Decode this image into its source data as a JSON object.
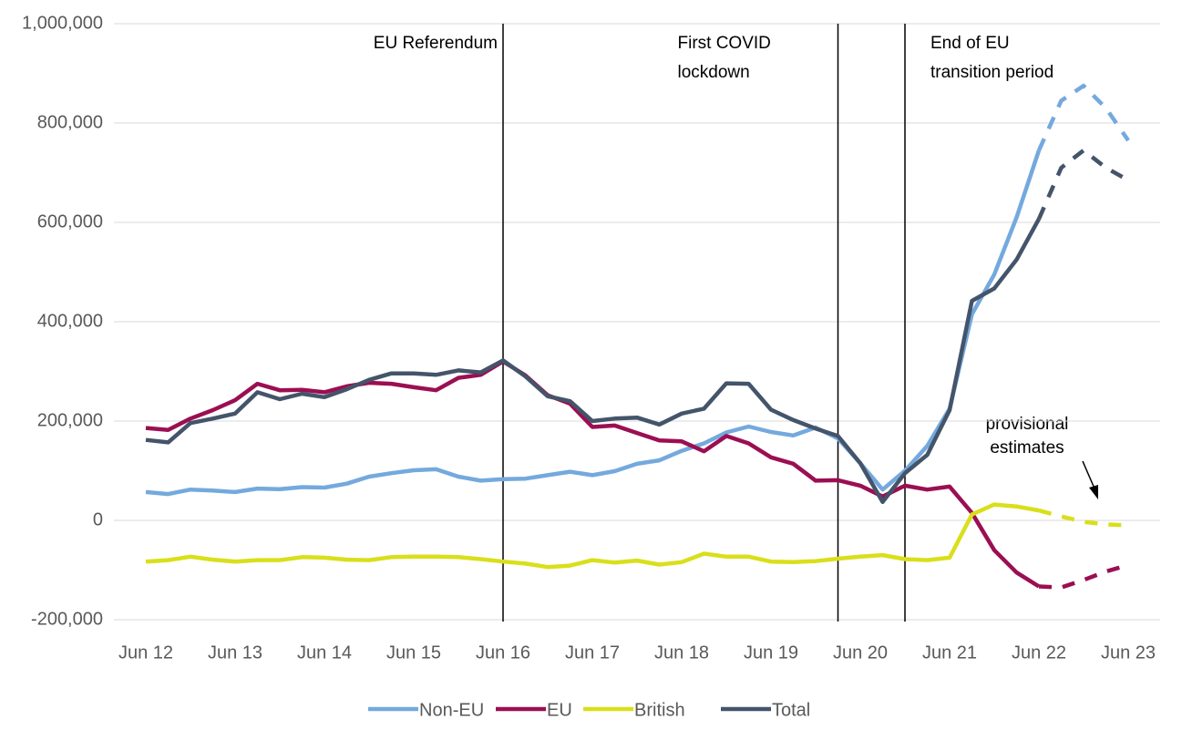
{
  "chart_data": {
    "type": "line",
    "categories": [
      "Jun 12",
      null,
      null,
      null,
      "Jun 13",
      null,
      null,
      null,
      "Jun 14",
      null,
      null,
      null,
      "Jun 15",
      null,
      null,
      null,
      "Jun 16",
      null,
      null,
      null,
      "Jun 17",
      null,
      null,
      null,
      "Jun 18",
      null,
      null,
      null,
      "Jun 19",
      null,
      null,
      null,
      "Jun 20",
      null,
      null,
      null,
      "Jun 21",
      null,
      null,
      null,
      "Jun 22",
      null,
      null,
      null,
      "Jun 23"
    ],
    "series": [
      {
        "name": "Non-EU",
        "color": "#74a9dd",
        "values": [
          57000,
          53000,
          62000,
          60000,
          57000,
          64000,
          63000,
          67000,
          66000,
          74000,
          88000,
          95000,
          101000,
          103000,
          88000,
          80000,
          83000,
          84000,
          91000,
          98000,
          91000,
          99000,
          114000,
          121000,
          140000,
          155000,
          177000,
          189000,
          178000,
          171000,
          187000,
          165000,
          115000,
          62000,
          100000,
          150000,
          225000,
          415000,
          495000,
          610000,
          745000,
          845000,
          875000,
          830000,
          765000
        ]
      },
      {
        "name": "EU",
        "color": "#9b0f52",
        "values": [
          186000,
          182000,
          205000,
          222000,
          242000,
          275000,
          262000,
          263000,
          258000,
          270000,
          277000,
          275000,
          268000,
          262000,
          287000,
          293000,
          320000,
          292000,
          252000,
          235000,
          188000,
          191000,
          176000,
          161000,
          159000,
          139000,
          170000,
          155000,
          127000,
          114000,
          80000,
          81000,
          70000,
          48000,
          70000,
          62000,
          68000,
          15000,
          -60000,
          -105000,
          -133000,
          -135000,
          -120000,
          -103000,
          -90000
        ]
      },
      {
        "name": "British",
        "color": "#d9df1a",
        "values": [
          -83000,
          -80000,
          -73000,
          -79000,
          -83000,
          -80000,
          -80000,
          -74000,
          -75000,
          -79000,
          -80000,
          -74000,
          -73000,
          -73000,
          -74000,
          -78000,
          -83000,
          -87000,
          -94000,
          -91000,
          -80000,
          -85000,
          -81000,
          -89000,
          -84000,
          -67000,
          -73000,
          -73000,
          -83000,
          -84000,
          -82000,
          -77000,
          -73000,
          -70000,
          -78000,
          -80000,
          -75000,
          12000,
          32000,
          28000,
          20000,
          8000,
          -3000,
          -8000,
          -10000
        ]
      },
      {
        "name": "Total",
        "color": "#44546a",
        "values": [
          162000,
          157000,
          196000,
          205000,
          215000,
          258000,
          244000,
          255000,
          248000,
          264000,
          283000,
          296000,
          296000,
          293000,
          302000,
          298000,
          322000,
          290000,
          250000,
          240000,
          200000,
          205000,
          207000,
          193000,
          215000,
          225000,
          276000,
          275000,
          223000,
          202000,
          185000,
          170000,
          115000,
          37000,
          95000,
          132000,
          222000,
          442000,
          467000,
          525000,
          607000,
          710000,
          745000,
          710000,
          685000
        ]
      }
    ],
    "dash_from": 40,
    "ylim": [
      -200000,
      1000000
    ],
    "yticks": [
      {
        "value": -200000,
        "label": "-200,000"
      },
      0,
      {
        "value": 200000,
        "label": "200,000"
      },
      {
        "value": 400000,
        "label": "400,000"
      },
      {
        "value": 600000,
        "label": "600,000"
      },
      {
        "value": 800000,
        "label": "800,000"
      },
      {
        "value": 1000000,
        "label": "1,000,000"
      }
    ],
    "grid": true,
    "legend": "bottom",
    "annotations": [
      {
        "category_index": 16,
        "lines": [
          "EU Referendum"
        ],
        "side": "left"
      },
      {
        "category_index": 31,
        "lines": [
          "First COVID",
          "lockdown"
        ],
        "side": "left"
      },
      {
        "category_index": 34,
        "lines": [
          "End of EU",
          "transition period"
        ],
        "side": "right"
      }
    ],
    "note": [
      "provisional",
      "estimates"
    ]
  }
}
